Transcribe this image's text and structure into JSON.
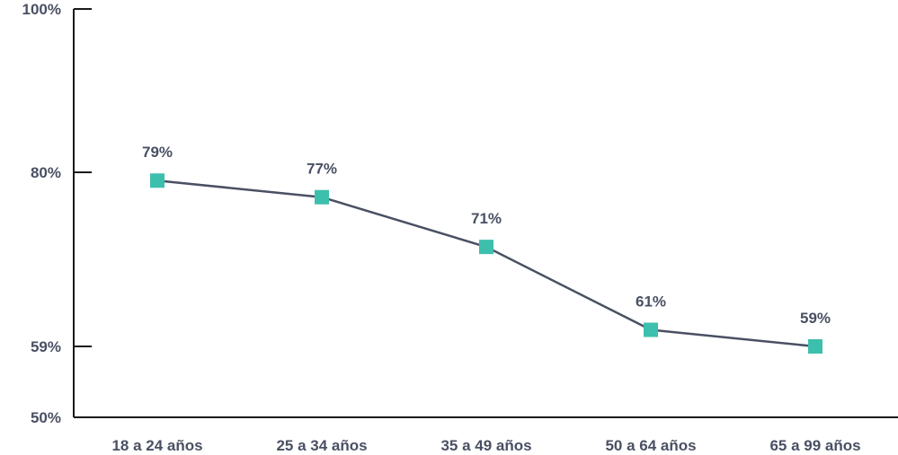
{
  "chart_data": {
    "type": "line",
    "categories": [
      "18 a 24 años",
      "25 a 34 años",
      "35 a 49 años",
      "50 a 64 años",
      "65 a 99 años"
    ],
    "series": [
      {
        "values": [
          79,
          77,
          71,
          61,
          59
        ]
      }
    ],
    "data_labels": [
      "79%",
      "77%",
      "71%",
      "61%",
      "59%"
    ],
    "yticks": [
      {
        "value": 100,
        "label": "100%"
      },
      {
        "value": 80,
        "label": "80%"
      },
      {
        "value": 59,
        "label": "59%"
      },
      {
        "value": 50,
        "label": "50%"
      }
    ],
    "ylim": [
      50,
      100
    ],
    "grid": false,
    "colors": {
      "line": "#4a5063",
      "marker": "#3dbfad",
      "axis": "#1a1a1a",
      "text": "#4a5063"
    }
  }
}
